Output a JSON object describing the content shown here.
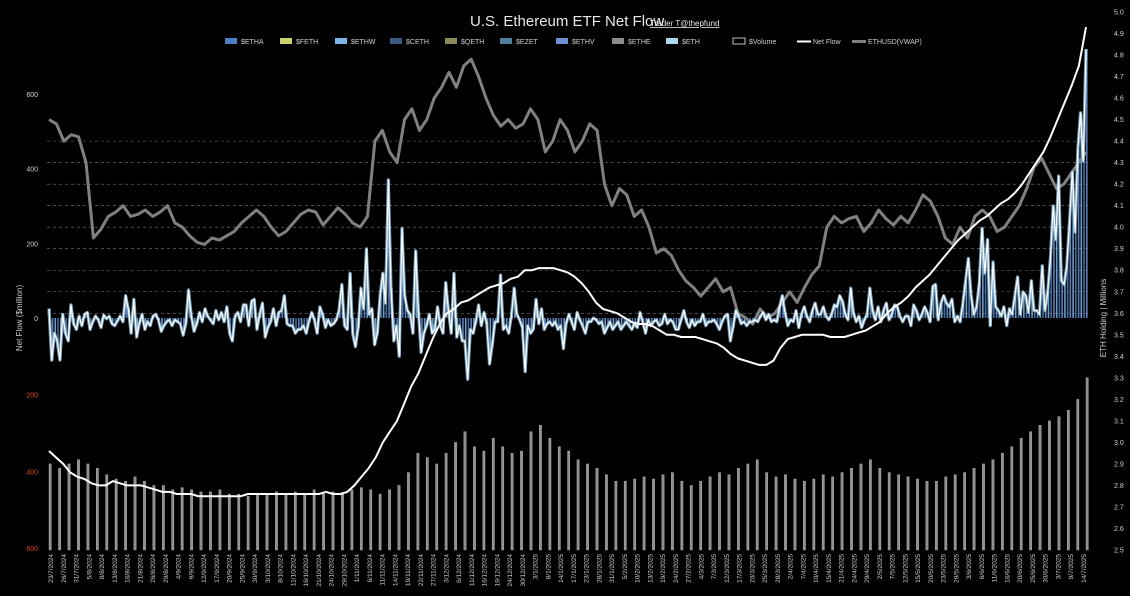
{
  "chart_data": {
    "type": "bar",
    "title": "U.S. Ethereum ETF Net Flow",
    "credit": "Trader T@thepfund",
    "ylabel": "Net Flow ($million)",
    "y2label": "ETH Holding | Millions",
    "ylim": [
      -600,
      600
    ],
    "y2lim": [
      2.5,
      5.0
    ],
    "yticks_positive": [
      "600",
      "400",
      "200",
      "0"
    ],
    "yticks_negative": [
      "200",
      "400",
      "600"
    ],
    "y2ticks": [
      "5.0",
      "4.9",
      "4.8",
      "4.7",
      "4.6",
      "4.5",
      "4.4",
      "4.3",
      "4.2",
      "4.1",
      "4.0",
      "3.9",
      "3.8",
      "3.7",
      "3.6",
      "3.5",
      "3.4",
      "3.3",
      "3.2",
      "3.1",
      "3.0",
      "2.9",
      "2.8",
      "2.7",
      "2.6",
      "2.5"
    ],
    "legend": [
      {
        "name": "$ETHA",
        "color": "#4a7fc1"
      },
      {
        "name": "$FETH",
        "color": "#c9d36a"
      },
      {
        "name": "$ETHW",
        "color": "#7fb5e6"
      },
      {
        "name": "$CETH",
        "color": "#3d5a80"
      },
      {
        "name": "$QETH",
        "color": "#8a8a5c"
      },
      {
        "name": "$EZET",
        "color": "#4f7f9a"
      },
      {
        "name": "$ETHV",
        "color": "#6d8fd6"
      },
      {
        "name": "$ETHE",
        "color": "#8c8c8c"
      },
      {
        "name": "$ETH",
        "color": "#a9d8f0"
      },
      {
        "name": "$Volume",
        "color": "#bfbfbf"
      },
      {
        "name": "Net Flow",
        "color": "#ffffff"
      },
      {
        "name": "ETHUSD(VWAP)",
        "color": "#808080"
      }
    ],
    "x_dates": [
      "23/7/2024",
      "26/7/2024",
      "31/7/2024",
      "5/8/2024",
      "8/8/2024",
      "13/8/2024",
      "16/8/2024",
      "21/8/2024",
      "26/8/2024",
      "29/8/2024",
      "4/9/2024",
      "9/9/2024",
      "12/9/2024",
      "17/9/2024",
      "20/9/2024",
      "25/9/2024",
      "30/9/2024",
      "3/10/2024",
      "8/10/2024",
      "11/10/2024",
      "16/10/2024",
      "21/10/2024",
      "24/10/2024",
      "29/10/2024",
      "1/11/2024",
      "6/11/2024",
      "11/11/2024",
      "14/11/2024",
      "19/11/2024",
      "22/11/2024",
      "27/11/2024",
      "3/12/2024",
      "6/12/2024",
      "11/12/2024",
      "16/12/2024",
      "19/12/2024",
      "24/12/2024",
      "30/12/2024",
      "3/1/2025",
      "8/1/2025",
      "14/1/2025",
      "17/1/2025",
      "23/1/2025",
      "28/1/2025",
      "31/1/2025",
      "5/2/2025",
      "10/2/2025",
      "13/2/2025",
      "19/2/2025",
      "24/2/2025",
      "27/2/2025",
      "4/3/2025",
      "7/3/2025",
      "12/3/2025",
      "17/3/2025",
      "20/3/2025",
      "25/3/2025",
      "28/3/2025",
      "2/4/2025",
      "7/4/2025",
      "10/4/2025",
      "15/4/2025",
      "21/4/2025",
      "24/4/2025",
      "29/4/2025",
      "2/5/2025",
      "7/5/2025",
      "12/5/2025",
      "15/5/2025",
      "20/5/2025",
      "23/5/2025",
      "29/5/2025",
      "3/6/2025",
      "6/6/2025",
      "11/6/2025",
      "16/6/2025",
      "20/6/2025",
      "25/6/2025",
      "30/6/2025",
      "3/7/2025",
      "9/7/2025",
      "14/7/2025"
    ],
    "net_flow": [
      25,
      -110,
      -40,
      -60,
      -110,
      10,
      -40,
      -60,
      35,
      -15,
      -30,
      5,
      -20,
      10,
      15,
      -30,
      -10,
      5,
      -5,
      -25,
      8,
      -2,
      5,
      -15,
      -20,
      -8,
      5,
      -10,
      60,
      25,
      -40,
      50,
      -50,
      -15,
      10,
      -30,
      -10,
      -20,
      5,
      10,
      -5,
      -35,
      -20,
      -10,
      -5,
      -20,
      -5,
      -10,
      -15,
      -45,
      -15,
      75,
      5,
      -35,
      -15,
      15,
      -10,
      25,
      5,
      -5,
      -15,
      20,
      -5,
      15,
      -10,
      30,
      -40,
      -60,
      5,
      15,
      -10,
      35,
      35,
      -20,
      45,
      50,
      -30,
      10,
      40,
      -50,
      -25,
      -10,
      25,
      -20,
      15,
      20,
      60,
      -15,
      -20,
      -20,
      -40,
      -30,
      -30,
      -20,
      -40,
      -10,
      15,
      -5,
      -40,
      30,
      10,
      -25,
      -5,
      -20,
      -15,
      -5,
      20,
      90,
      -20,
      -30,
      120,
      -40,
      -75,
      -25,
      80,
      25,
      185,
      10,
      25,
      -70,
      -40,
      60,
      120,
      40,
      370,
      80,
      -60,
      -20,
      -100,
      240,
      60,
      20,
      10,
      -40,
      180,
      20,
      -90,
      -40,
      -20,
      10,
      -40,
      -30,
      30,
      -20,
      -40,
      95,
      20,
      -40,
      120,
      -50,
      -20,
      -60,
      -60,
      -160,
      -30,
      -40,
      -10,
      35,
      -20,
      15,
      -15,
      -120,
      -70,
      -10,
      -10,
      115,
      -30,
      -20,
      -40,
      5,
      80,
      10,
      -5,
      -25,
      -140,
      -20,
      -40,
      -30,
      50,
      -15,
      25,
      -30,
      -15,
      -10,
      -20,
      -10,
      -30,
      -20,
      -80,
      -15,
      10,
      -10,
      -30,
      15,
      -5,
      -20,
      -40,
      -10,
      -10,
      0,
      -5,
      -15,
      -10,
      -40,
      -25,
      -10,
      -30,
      -20,
      -10,
      -30,
      -20,
      -10,
      -20,
      -30,
      -15,
      -25,
      15,
      -10,
      -40,
      -5,
      -20,
      -10,
      -5,
      -20,
      -15,
      10,
      -15,
      -5,
      -10,
      -30,
      -30,
      -5,
      20,
      -10,
      -25,
      -5,
      -20,
      -10,
      -10,
      10,
      -20,
      -10,
      -10,
      -5,
      -15,
      -30,
      -10,
      5,
      10,
      -60,
      -25,
      20,
      5,
      -15,
      -10,
      -20,
      -10,
      -10,
      -5,
      -10,
      5,
      15,
      -5,
      10,
      -10,
      -5,
      -10,
      30,
      60,
      15,
      -20,
      -5,
      -10,
      20,
      -25,
      10,
      30,
      5,
      -10,
      20,
      40,
      10,
      10,
      30,
      5,
      -5,
      10,
      35,
      30,
      60,
      45,
      10,
      -5,
      80,
      15,
      -10,
      5,
      -25,
      -5,
      10,
      80,
      20,
      -5,
      30,
      -10,
      20,
      40,
      -5,
      10,
      35,
      30,
      5,
      -10,
      5,
      5,
      -20,
      35,
      20,
      -5,
      10,
      30,
      15,
      -10,
      85,
      90,
      -5,
      40,
      60,
      40,
      30,
      50,
      -10,
      5,
      -10,
      40,
      100,
      160,
      60,
      10,
      30,
      95,
      240,
      120,
      210,
      -20,
      150,
      30,
      20,
      5,
      30,
      -20,
      25,
      10,
      60,
      110,
      10,
      70,
      60,
      15,
      100,
      20,
      20,
      10,
      140,
      20,
      70,
      160,
      300,
      210,
      380,
      100,
      90,
      140,
      260,
      390,
      230,
      450,
      550,
      420,
      720
    ],
    "holdings_millions": [
      2.96,
      2.93,
      2.9,
      2.86,
      2.84,
      2.83,
      2.81,
      2.8,
      2.8,
      2.82,
      2.81,
      2.8,
      2.8,
      2.8,
      2.79,
      2.78,
      2.77,
      2.77,
      2.76,
      2.76,
      2.76,
      2.75,
      2.75,
      2.75,
      2.75,
      2.75,
      2.75,
      2.75,
      2.76,
      2.76,
      2.76,
      2.76,
      2.76,
      2.76,
      2.76,
      2.76,
      2.76,
      2.76,
      2.76,
      2.77,
      2.76,
      2.76,
      2.77,
      2.8,
      2.84,
      2.88,
      2.93,
      3.0,
      3.05,
      3.1,
      3.18,
      3.26,
      3.32,
      3.4,
      3.48,
      3.55,
      3.6,
      3.62,
      3.65,
      3.66,
      3.68,
      3.7,
      3.72,
      3.73,
      3.74,
      3.76,
      3.77,
      3.8,
      3.8,
      3.81,
      3.81,
      3.81,
      3.8,
      3.79,
      3.77,
      3.74,
      3.7,
      3.65,
      3.62,
      3.61,
      3.6,
      3.58,
      3.56,
      3.55,
      3.55,
      3.54,
      3.52,
      3.5,
      3.5,
      3.49,
      3.49,
      3.49,
      3.48,
      3.47,
      3.46,
      3.44,
      3.41,
      3.39,
      3.38,
      3.37,
      3.36,
      3.36,
      3.38,
      3.44,
      3.48,
      3.49,
      3.5,
      3.5,
      3.5,
      3.5,
      3.49,
      3.49,
      3.49,
      3.5,
      3.51,
      3.52,
      3.54,
      3.56,
      3.6,
      3.63,
      3.65,
      3.68,
      3.72,
      3.75,
      3.78,
      3.82,
      3.86,
      3.9,
      3.94,
      3.97,
      4.0,
      4.03,
      4.05,
      4.08,
      4.11,
      4.13,
      4.16,
      4.2,
      4.25,
      4.3,
      4.35,
      4.42,
      4.5,
      4.58,
      4.66,
      4.75,
      4.93
    ],
    "vwap_ethusd": [
      4.5,
      4.48,
      4.4,
      4.43,
      4.42,
      4.3,
      3.95,
      3.99,
      4.05,
      4.07,
      4.1,
      4.05,
      4.06,
      4.08,
      4.05,
      4.07,
      4.1,
      4.02,
      4.0,
      3.96,
      3.93,
      3.92,
      3.95,
      3.94,
      3.96,
      3.98,
      4.02,
      4.05,
      4.08,
      4.05,
      4.0,
      3.96,
      3.98,
      4.02,
      4.06,
      4.08,
      4.07,
      4.01,
      4.05,
      4.09,
      4.06,
      4.02,
      4.0,
      4.05,
      4.4,
      4.45,
      4.35,
      4.3,
      4.5,
      4.55,
      4.45,
      4.5,
      4.6,
      4.65,
      4.72,
      4.65,
      4.75,
      4.78,
      4.7,
      4.6,
      4.52,
      4.47,
      4.5,
      4.46,
      4.48,
      4.55,
      4.5,
      4.35,
      4.4,
      4.5,
      4.45,
      4.35,
      4.4,
      4.48,
      4.45,
      4.2,
      4.1,
      4.18,
      4.15,
      4.05,
      4.08,
      4.0,
      3.88,
      3.9,
      3.87,
      3.8,
      3.75,
      3.72,
      3.68,
      3.72,
      3.76,
      3.7,
      3.72,
      3.6,
      3.58,
      3.55,
      3.62,
      3.58,
      3.6,
      3.65,
      3.7,
      3.65,
      3.72,
      3.78,
      3.82,
      4.0,
      4.05,
      4.02,
      4.04,
      4.05,
      3.98,
      4.02,
      4.08,
      4.04,
      4.01,
      4.05,
      4.02,
      4.08,
      4.15,
      4.12,
      4.05,
      3.95,
      3.92,
      4.0,
      3.95,
      4.05,
      4.08,
      4.05,
      3.98,
      4.0,
      4.05,
      4.1,
      4.18,
      4.28,
      4.32,
      4.25,
      4.18,
      4.2,
      4.25,
      4.3,
      4.35
    ],
    "volume_millions": [
      2.9,
      2.88,
      2.9,
      2.92,
      2.9,
      2.88,
      2.85,
      2.83,
      2.82,
      2.84,
      2.82,
      2.8,
      2.8,
      2.78,
      2.79,
      2.78,
      2.77,
      2.77,
      2.78,
      2.76,
      2.76,
      2.75,
      2.76,
      2.76,
      2.77,
      2.76,
      2.77,
      2.76,
      2.78,
      2.76,
      2.77,
      2.76,
      2.78,
      2.79,
      2.78,
      2.76,
      2.78,
      2.8,
      2.86,
      2.95,
      2.93,
      2.9,
      2.95,
      3.0,
      3.05,
      2.98,
      2.96,
      3.02,
      2.98,
      2.95,
      2.96,
      3.05,
      3.08,
      3.02,
      2.98,
      2.96,
      2.92,
      2.9,
      2.88,
      2.85,
      2.82,
      2.82,
      2.83,
      2.84,
      2.83,
      2.85,
      2.86,
      2.82,
      2.8,
      2.82,
      2.84,
      2.86,
      2.85,
      2.88,
      2.9,
      2.92,
      2.86,
      2.84,
      2.85,
      2.83,
      2.82,
      2.83,
      2.85,
      2.84,
      2.86,
      2.88,
      2.9,
      2.92,
      2.88,
      2.86,
      2.85,
      2.84,
      2.83,
      2.82,
      2.82,
      2.84,
      2.85,
      2.86,
      2.88,
      2.9,
      2.92,
      2.95,
      2.98,
      3.02,
      3.05,
      3.08,
      3.1,
      3.12,
      3.15,
      3.2,
      3.3
    ]
  }
}
